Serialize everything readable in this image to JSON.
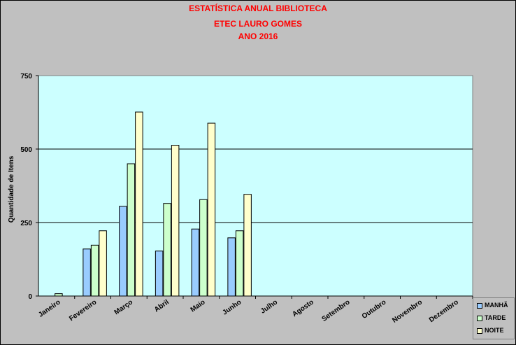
{
  "chart_data": {
    "type": "bar",
    "title": [
      "ESTATÍSTICA ANUAL BIBLIOTECA",
      "ETEC LAURO GOMES",
      "ANO 2016"
    ],
    "ylabel": "Quantidade de Itens",
    "xlabel": "",
    "ylim": [
      0,
      750
    ],
    "yticks": [
      "0",
      "250",
      "500",
      "750"
    ],
    "categories": [
      "Janeiro",
      "Fevereiro",
      "Março",
      "Abril",
      "Maio",
      "Junho",
      "Julho",
      "Agosto",
      "Setembro",
      "Outubro",
      "Novembro",
      "Dezembro"
    ],
    "series": [
      {
        "name": "MANHÃ",
        "color": "#99ccff",
        "values": [
          0,
          160,
          305,
          153,
          228,
          198,
          0,
          0,
          0,
          0,
          0,
          0
        ]
      },
      {
        "name": "TARDE",
        "color": "#ccffcc",
        "values": [
          8,
          173,
          450,
          315,
          328,
          222,
          0,
          0,
          0,
          0,
          0,
          0
        ]
      },
      {
        "name": "NOITE",
        "color": "#ffffcc",
        "values": [
          0,
          222,
          626,
          513,
          588,
          346,
          0,
          0,
          0,
          0,
          0,
          0
        ]
      }
    ],
    "plot_background": "#ccffff",
    "grid": true,
    "legend": "bottom-right"
  }
}
